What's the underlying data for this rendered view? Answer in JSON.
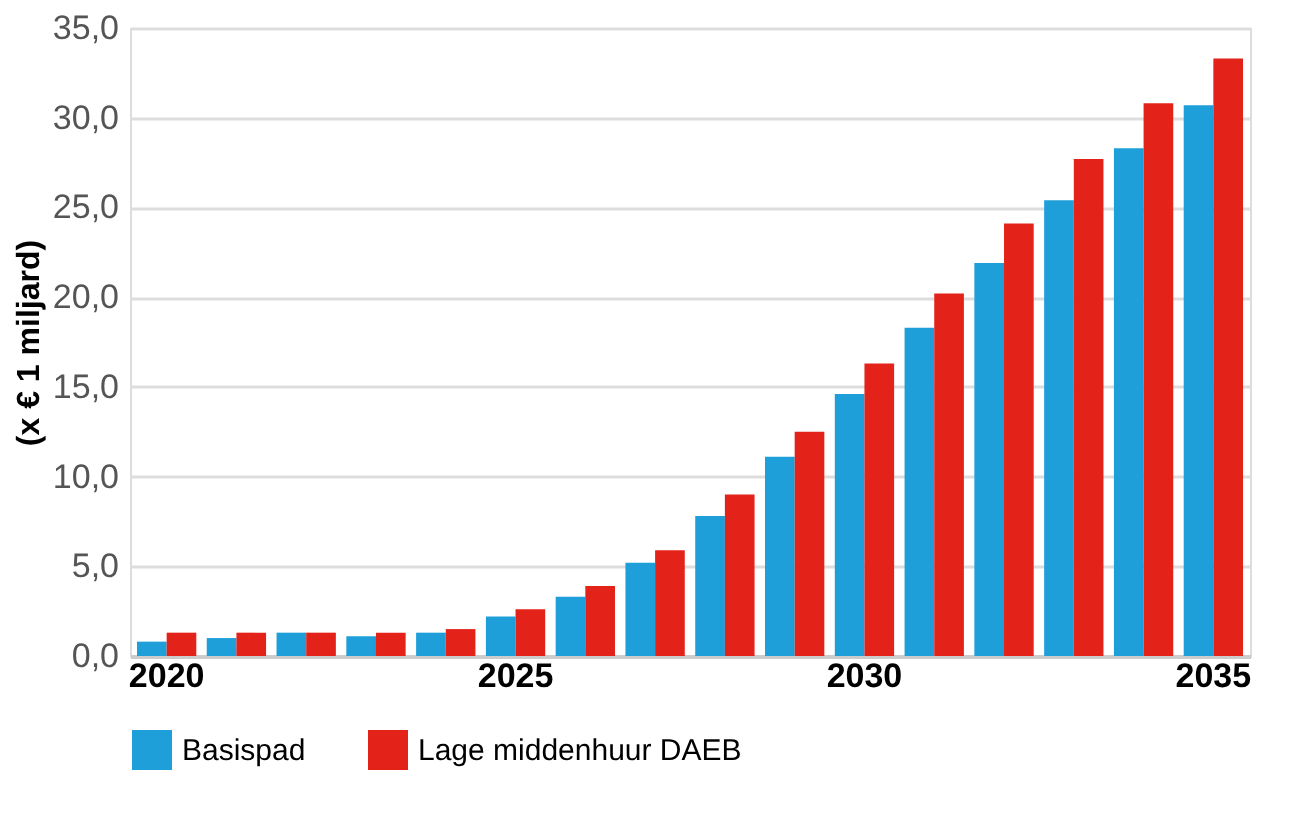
{
  "chart_data": {
    "type": "bar",
    "ylabel": "(x € 1 miljard)",
    "categories": [
      "2020",
      null,
      null,
      null,
      null,
      "2025",
      null,
      null,
      null,
      null,
      "2030",
      null,
      null,
      null,
      null,
      "2035"
    ],
    "series": [
      {
        "name": "Basispad",
        "color": "#1e9fd9",
        "values": [
          0.8,
          1.0,
          1.3,
          1.1,
          1.3,
          2.2,
          3.3,
          5.2,
          7.8,
          11.1,
          14.6,
          18.3,
          21.9,
          25.4,
          28.3,
          30.7
        ]
      },
      {
        "name": "Lage middenhuur DAEB",
        "color": "#e32219",
        "values": [
          1.3,
          1.3,
          1.3,
          1.3,
          1.5,
          2.6,
          3.9,
          5.9,
          9.0,
          12.5,
          16.3,
          20.2,
          24.1,
          27.7,
          30.8,
          33.3
        ]
      }
    ],
    "ylim": [
      0,
      35
    ],
    "yticks": [
      {
        "value": 0,
        "label": "0,0"
      },
      {
        "value": 5,
        "label": "5,0"
      },
      {
        "value": 10,
        "label": "10,0"
      },
      {
        "value": 15,
        "label": "15,0"
      },
      {
        "value": 20,
        "label": "20,0"
      },
      {
        "value": 25,
        "label": "25,0"
      },
      {
        "value": 30,
        "label": "30,0"
      },
      {
        "value": 35,
        "label": "35,0"
      }
    ],
    "grid": "y",
    "legend": "bottom"
  }
}
